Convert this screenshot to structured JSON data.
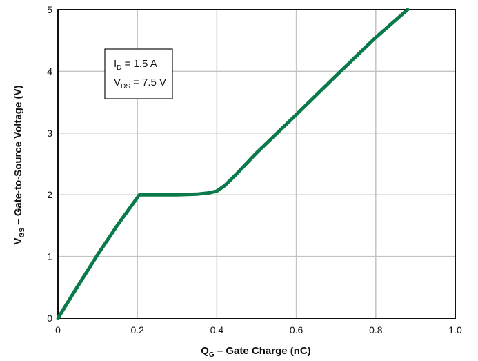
{
  "chart_data": {
    "type": "line",
    "title": "",
    "xlabel": {
      "main": "Q",
      "sub": "G",
      "rest": " – Gate Charge (nC)"
    },
    "ylabel": {
      "main": "V",
      "sub": "GS",
      "rest": " – Gate-to-Source Voltage (V)"
    },
    "xlim": [
      0,
      1.0
    ],
    "ylim": [
      0,
      5
    ],
    "x_ticks": [
      "0",
      "0.2",
      "0.4",
      "0.6",
      "0.8",
      "1.0"
    ],
    "y_ticks": [
      "0",
      "1",
      "2",
      "3",
      "4",
      "5"
    ],
    "grid": true,
    "line_color": "#0a7a4a",
    "series": [
      {
        "x": [
          0,
          0.05,
          0.1,
          0.15,
          0.205,
          0.25,
          0.3,
          0.35,
          0.38,
          0.4,
          0.42,
          0.45,
          0.5,
          0.6,
          0.7,
          0.8,
          0.88
        ],
        "y": [
          0,
          0.52,
          1.03,
          1.51,
          2.0,
          2.0,
          2.0,
          2.01,
          2.03,
          2.06,
          2.15,
          2.34,
          2.68,
          3.3,
          3.93,
          4.55,
          5.0
        ]
      }
    ],
    "annotation": {
      "line1": {
        "main": "I",
        "sub": "D",
        "rest": " = 1.5 A"
      },
      "line2": {
        "main": "V",
        "sub": "DS",
        "rest": " = 7.5 V"
      }
    }
  }
}
